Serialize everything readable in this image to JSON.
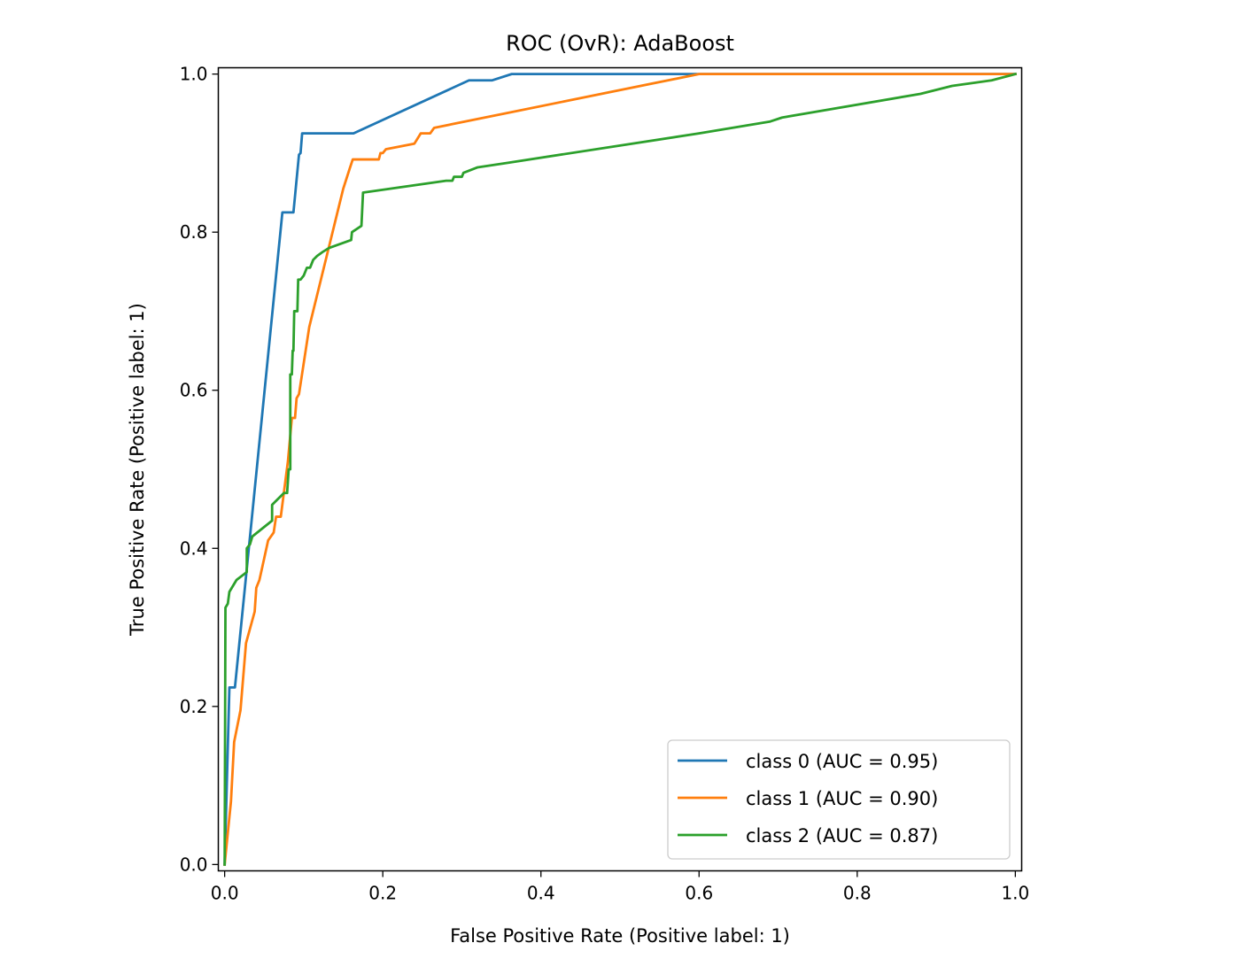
{
  "chart_data": {
    "type": "line",
    "title": "ROC (OvR): AdaBoost",
    "xlabel": "False Positive Rate (Positive label: 1)",
    "ylabel": "True Positive Rate (Positive label: 1)",
    "xlim": [
      -0.008,
      1.008
    ],
    "ylim": [
      -0.008,
      1.008
    ],
    "xticks": [
      0.0,
      0.2,
      0.4,
      0.6,
      0.8,
      1.0
    ],
    "xtick_labels": [
      "0.0",
      "0.2",
      "0.4",
      "0.6",
      "0.8",
      "1.0"
    ],
    "yticks": [
      0.0,
      0.2,
      0.4,
      0.6,
      0.8,
      1.0
    ],
    "ytick_labels": [
      "0.0",
      "0.2",
      "0.4",
      "0.6",
      "0.8",
      "1.0"
    ],
    "grid": false,
    "legend_position": "lower-right",
    "series": [
      {
        "name": "class 0 (AUC = 0.95)",
        "color": "#1f77b4",
        "points": [
          [
            0.0,
            0.0
          ],
          [
            0.006,
            0.224
          ],
          [
            0.013,
            0.224
          ],
          [
            0.073,
            0.825
          ],
          [
            0.087,
            0.825
          ],
          [
            0.094,
            0.898
          ],
          [
            0.096,
            0.9
          ],
          [
            0.098,
            0.925
          ],
          [
            0.163,
            0.925
          ],
          [
            0.309,
            0.992
          ],
          [
            0.338,
            0.992
          ],
          [
            0.363,
            1.0
          ],
          [
            1.0,
            1.0
          ]
        ]
      },
      {
        "name": "class 1 (AUC = 0.90)",
        "color": "#ff7f0e",
        "points": [
          [
            0.0,
            0.0
          ],
          [
            0.004,
            0.04
          ],
          [
            0.008,
            0.08
          ],
          [
            0.012,
            0.155
          ],
          [
            0.02,
            0.195
          ],
          [
            0.027,
            0.28
          ],
          [
            0.038,
            0.32
          ],
          [
            0.04,
            0.35
          ],
          [
            0.044,
            0.36
          ],
          [
            0.055,
            0.41
          ],
          [
            0.062,
            0.42
          ],
          [
            0.065,
            0.44
          ],
          [
            0.071,
            0.44
          ],
          [
            0.08,
            0.51
          ],
          [
            0.085,
            0.565
          ],
          [
            0.089,
            0.565
          ],
          [
            0.091,
            0.59
          ],
          [
            0.094,
            0.595
          ],
          [
            0.107,
            0.68
          ],
          [
            0.15,
            0.855
          ],
          [
            0.158,
            0.88
          ],
          [
            0.162,
            0.892
          ],
          [
            0.195,
            0.892
          ],
          [
            0.197,
            0.9
          ],
          [
            0.2,
            0.9
          ],
          [
            0.204,
            0.905
          ],
          [
            0.24,
            0.912
          ],
          [
            0.248,
            0.925
          ],
          [
            0.26,
            0.925
          ],
          [
            0.265,
            0.932
          ],
          [
            0.6,
            1.0
          ],
          [
            1.0,
            1.0
          ]
        ]
      },
      {
        "name": "class 2 (AUC = 0.87)",
        "color": "#2ca02c",
        "points": [
          [
            0.0,
            0.0
          ],
          [
            0.001,
            0.325
          ],
          [
            0.004,
            0.33
          ],
          [
            0.006,
            0.345
          ],
          [
            0.015,
            0.36
          ],
          [
            0.028,
            0.37
          ],
          [
            0.028,
            0.4
          ],
          [
            0.032,
            0.405
          ],
          [
            0.035,
            0.415
          ],
          [
            0.06,
            0.435
          ],
          [
            0.06,
            0.455
          ],
          [
            0.075,
            0.47
          ],
          [
            0.079,
            0.47
          ],
          [
            0.081,
            0.5
          ],
          [
            0.083,
            0.5
          ],
          [
            0.083,
            0.62
          ],
          [
            0.085,
            0.62
          ],
          [
            0.086,
            0.65
          ],
          [
            0.087,
            0.65
          ],
          [
            0.088,
            0.7
          ],
          [
            0.092,
            0.7
          ],
          [
            0.093,
            0.74
          ],
          [
            0.096,
            0.74
          ],
          [
            0.1,
            0.745
          ],
          [
            0.104,
            0.755
          ],
          [
            0.108,
            0.755
          ],
          [
            0.112,
            0.765
          ],
          [
            0.117,
            0.77
          ],
          [
            0.124,
            0.775
          ],
          [
            0.132,
            0.78
          ],
          [
            0.16,
            0.79
          ],
          [
            0.161,
            0.8
          ],
          [
            0.173,
            0.808
          ],
          [
            0.175,
            0.85
          ],
          [
            0.28,
            0.865
          ],
          [
            0.288,
            0.865
          ],
          [
            0.29,
            0.87
          ],
          [
            0.3,
            0.87
          ],
          [
            0.302,
            0.875
          ],
          [
            0.32,
            0.882
          ],
          [
            0.36,
            0.888
          ],
          [
            0.6,
            0.925
          ],
          [
            0.69,
            0.94
          ],
          [
            0.705,
            0.945
          ],
          [
            0.88,
            0.975
          ],
          [
            0.92,
            0.985
          ],
          [
            0.97,
            0.992
          ],
          [
            1.0,
            1.0
          ]
        ]
      }
    ]
  }
}
